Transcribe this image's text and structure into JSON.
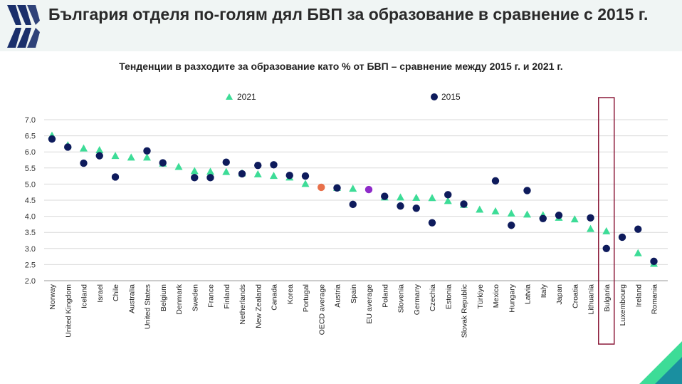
{
  "header": {
    "title": "България отделя по-голям дял БВП за образование в сравнение с 2015 г."
  },
  "colors": {
    "header_bg": "#f0f5f4",
    "series_2021": "#3ddc97",
    "series_2015": "#0e1b5c",
    "oecd_average": "#e8704a",
    "eu_average": "#8e2bc9",
    "highlight_box": "#8b1a3a",
    "logo": "#1a2f6b"
  },
  "chart_data": {
    "type": "scatter",
    "title": "Тенденции в разходите за образование като % от БВП – сравнение между 2015 г. и 2021 г.",
    "ylim": [
      2.0,
      7.0
    ],
    "yticks": [
      "2.0",
      "2.5",
      "3.0",
      "3.5",
      "4.0",
      "4.5",
      "5.0",
      "5.5",
      "6.0",
      "6.5",
      "7.0"
    ],
    "grid": true,
    "legend_position": "top",
    "categories": [
      "Norway",
      "United Kingdom",
      "Iceland",
      "Israel",
      "Chile",
      "Australia",
      "United States",
      "Belgium",
      "Denmark",
      "Sweden",
      "France",
      "Finland",
      "Netherlands",
      "New Zealand",
      "Canada",
      "Korea",
      "Portugal",
      "OECD average",
      "Austria",
      "Spain",
      "EU average",
      "Poland",
      "Slovenia",
      "Germany",
      "Czechia",
      "Estonia",
      "Slovak Republic",
      "Türkiye",
      "Mexico",
      "Hungary",
      "Latvia",
      "Italy",
      "Japan",
      "Croatia",
      "Lithuania",
      "Bulgaria",
      "Luxembourg",
      "Ireland",
      "Romania"
    ],
    "series": [
      {
        "name": "2021",
        "marker": "triangle",
        "values": [
          6.5,
          6.2,
          6.1,
          6.05,
          5.87,
          5.82,
          5.82,
          5.63,
          5.53,
          5.4,
          5.38,
          5.37,
          5.33,
          5.3,
          5.25,
          5.2,
          5.0,
          4.9,
          4.88,
          4.85,
          4.83,
          4.58,
          4.58,
          4.57,
          4.56,
          4.47,
          4.35,
          4.2,
          4.15,
          4.08,
          4.05,
          4.03,
          3.95,
          3.9,
          3.6,
          3.53,
          null,
          2.85,
          2.52
        ]
      },
      {
        "name": "2015",
        "marker": "circle",
        "values": [
          6.4,
          6.15,
          5.65,
          5.88,
          5.22,
          null,
          6.03,
          5.66,
          null,
          5.2,
          5.2,
          5.68,
          5.32,
          5.58,
          5.6,
          5.27,
          5.25,
          4.9,
          4.88,
          4.37,
          4.83,
          4.62,
          4.32,
          4.25,
          3.8,
          4.67,
          4.38,
          null,
          5.1,
          3.72,
          4.8,
          3.93,
          4.03,
          null,
          3.95,
          3.0,
          3.35,
          3.6,
          2.6
        ]
      }
    ],
    "highlight_category": "Bulgaria"
  }
}
